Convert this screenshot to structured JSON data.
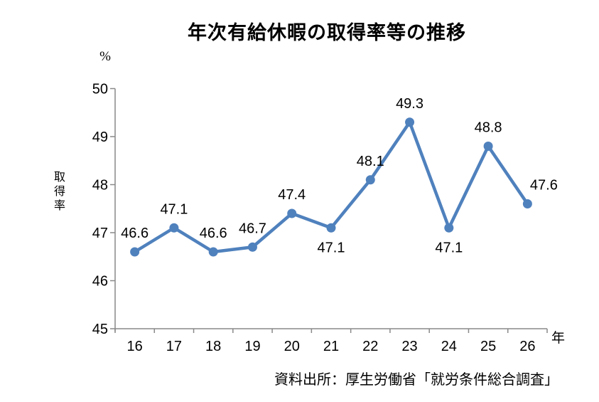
{
  "page": {
    "source_note": "資料出所：厚生労働省「就労条件総合調査」"
  },
  "chart_data": {
    "type": "line",
    "title": "年次有給休暇の取得率等の推移",
    "x_axis_title": "年",
    "y_axis_title": "取得率",
    "y_unit_label": "%",
    "categories": [
      16,
      17,
      18,
      19,
      20,
      21,
      22,
      23,
      24,
      25,
      26
    ],
    "values": [
      46.6,
      47.1,
      46.6,
      46.7,
      47.4,
      47.1,
      48.1,
      49.3,
      47.1,
      48.8,
      47.6
    ],
    "data_labels": [
      "46.6",
      "47.1",
      "46.6",
      "46.7",
      "47.4",
      "47.1",
      "48.1",
      "49.3",
      "47.1",
      "48.8",
      "47.6"
    ],
    "label_positions": [
      "above",
      "above",
      "above",
      "above",
      "above",
      "below",
      "above",
      "above",
      "below",
      "above",
      "above-right"
    ],
    "ylim": [
      45,
      50
    ],
    "yticks": [
      45,
      46,
      47,
      48,
      49,
      50
    ],
    "grid": false,
    "legend_position": "none",
    "line_color": "#4F81BD",
    "marker_color": "#4F81BD",
    "axis_color": "#898989",
    "text_color": "#000000"
  }
}
